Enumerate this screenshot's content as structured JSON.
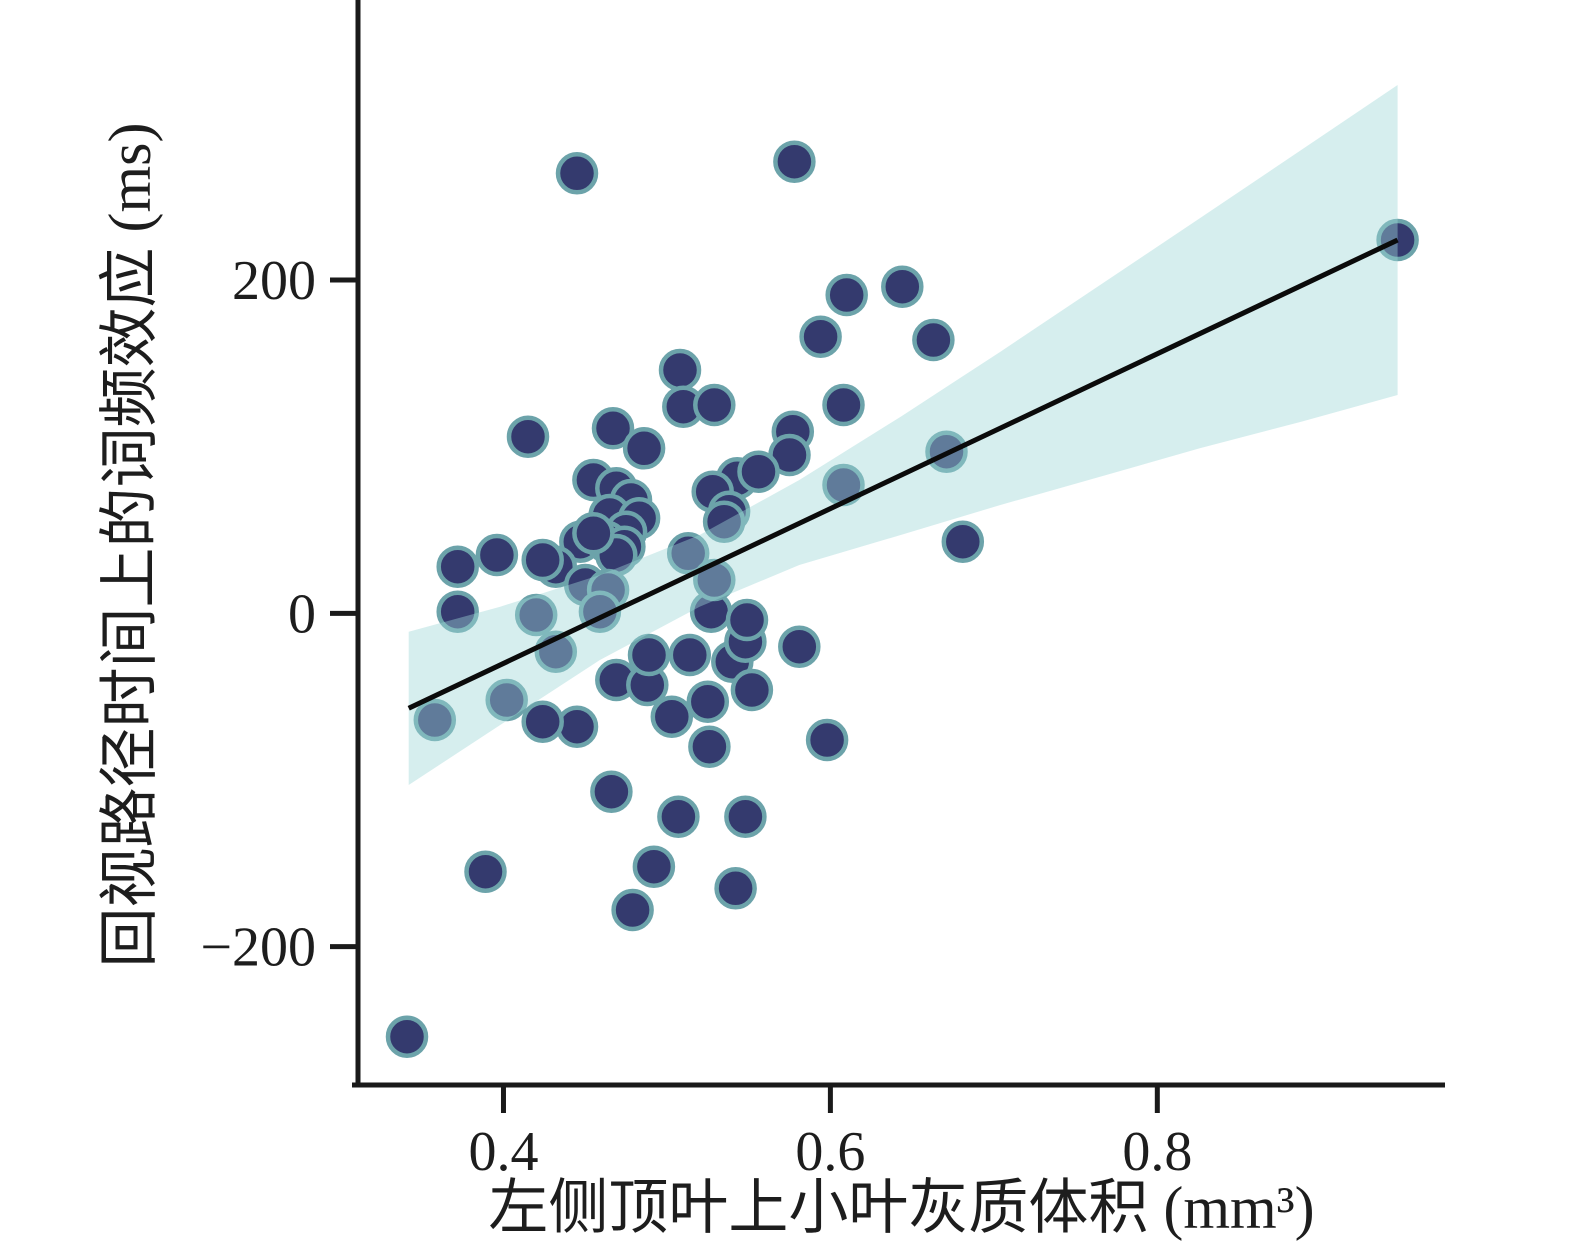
{
  "figure": {
    "background": "#ffffff"
  },
  "chart_data": {
    "type": "scatter",
    "title": "",
    "xlabel": "左侧顶叶上小叶灰质体积 (mm³)",
    "ylabel": "回视路径时间上的词频效应 (ms)",
    "xlim": [
      0.311,
      0.976
    ],
    "ylim": [
      -283,
      368
    ],
    "grid": false,
    "legend": null,
    "x_ticks": {
      "values": [
        0.4,
        0.6,
        0.8
      ],
      "labels": [
        "0.4",
        "0.6",
        "0.8"
      ]
    },
    "y_ticks": {
      "values": [
        200,
        0,
        -200
      ],
      "labels": [
        "200",
        "0",
        "−200"
      ]
    },
    "points": [
      [
        0.445,
        264
      ],
      [
        0.578,
        271
      ],
      [
        0.947,
        224
      ],
      [
        0.61,
        191
      ],
      [
        0.644,
        196
      ],
      [
        0.594,
        166
      ],
      [
        0.663,
        164
      ],
      [
        0.508,
        146
      ],
      [
        0.51,
        124
      ],
      [
        0.529,
        125
      ],
      [
        0.467,
        111
      ],
      [
        0.486,
        99
      ],
      [
        0.415,
        106
      ],
      [
        0.608,
        125
      ],
      [
        0.577,
        109
      ],
      [
        0.575,
        95
      ],
      [
        0.671,
        97
      ],
      [
        0.681,
        43
      ],
      [
        0.455,
        80
      ],
      [
        0.469,
        75
      ],
      [
        0.478,
        68
      ],
      [
        0.543,
        81
      ],
      [
        0.556,
        85
      ],
      [
        0.528,
        73
      ],
      [
        0.538,
        61
      ],
      [
        0.608,
        77
      ],
      [
        0.535,
        55
      ],
      [
        0.465,
        59
      ],
      [
        0.483,
        57
      ],
      [
        0.475,
        49
      ],
      [
        0.447,
        43
      ],
      [
        0.463,
        43
      ],
      [
        0.474,
        40
      ],
      [
        0.513,
        36
      ],
      [
        0.469,
        35
      ],
      [
        0.396,
        35
      ],
      [
        0.372,
        28
      ],
      [
        0.432,
        28
      ],
      [
        0.424,
        32
      ],
      [
        0.45,
        17
      ],
      [
        0.464,
        14
      ],
      [
        0.455,
        48
      ],
      [
        0.372,
        1
      ],
      [
        0.42,
        -1
      ],
      [
        0.459,
        1
      ],
      [
        0.527,
        1
      ],
      [
        0.432,
        -23
      ],
      [
        0.358,
        -64
      ],
      [
        0.402,
        -52
      ],
      [
        0.529,
        20
      ],
      [
        0.469,
        -40
      ],
      [
        0.488,
        -43
      ],
      [
        0.489,
        -25
      ],
      [
        0.514,
        -25
      ],
      [
        0.54,
        -29
      ],
      [
        0.548,
        -17
      ],
      [
        0.549,
        -4
      ],
      [
        0.581,
        -20
      ],
      [
        0.552,
        -46
      ],
      [
        0.503,
        -62
      ],
      [
        0.525,
        -53
      ],
      [
        0.526,
        -80
      ],
      [
        0.445,
        -68
      ],
      [
        0.424,
        -65
      ],
      [
        0.598,
        -76
      ],
      [
        0.466,
        -107
      ],
      [
        0.507,
        -122
      ],
      [
        0.548,
        -122
      ],
      [
        0.492,
        -152
      ],
      [
        0.542,
        -165
      ],
      [
        0.479,
        -178
      ],
      [
        0.389,
        -155
      ],
      [
        0.341,
        -254
      ]
    ],
    "regression_line": {
      "x": [
        0.342,
        0.947
      ],
      "y": [
        -57,
        224
      ]
    },
    "ci_band": {
      "x": [
        0.342,
        0.398,
        0.459,
        0.52,
        0.581,
        0.643,
        0.704,
        0.765,
        0.826,
        0.888,
        0.947
      ],
      "upper": [
        -11,
        4,
        23,
        47,
        80,
        118,
        157,
        197,
        237,
        278,
        317
      ],
      "lower": [
        -103,
        -67,
        -28,
        4,
        29,
        47,
        65,
        82,
        99,
        115,
        131
      ]
    },
    "colors": {
      "point_fill": "#343A6E",
      "point_stroke": "#6CA3AA",
      "band_fill": "#9ED6D6",
      "band_opacity": 0.42,
      "line": "#0b0b0b",
      "axis": "#1a1a1a",
      "text": "#1d1d1d"
    }
  }
}
